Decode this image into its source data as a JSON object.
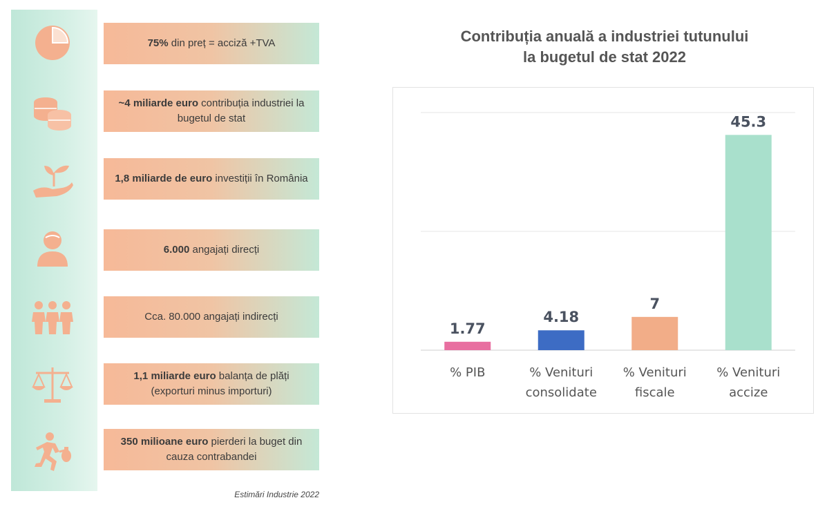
{
  "cards": [
    {
      "icon": "pie-chart-icon",
      "bold": "75%",
      "text": " din preț = acciză +TVA"
    },
    {
      "icon": "coins-icon",
      "bold": "~4 miliarde euro",
      "text": " contribuția industriei la bugetul de stat"
    },
    {
      "icon": "plant-hand-icon",
      "bold": "1,8 miliarde de euro",
      "text": " investiții în România"
    },
    {
      "icon": "employee-icon",
      "bold": "6.000",
      "text": " angajați direcți"
    },
    {
      "icon": "people-group-icon",
      "bold": "",
      "text": "Cca. 80.000 angajați indirecți"
    },
    {
      "icon": "scales-icon",
      "bold": "1,1 miliarde euro",
      "text": " balanța de plăți (exporturi minus importuri)"
    },
    {
      "icon": "running-thief-icon",
      "bold": "350 milioane euro",
      "text": " pierderi la buget din cauza contrabandei"
    }
  ],
  "source_note": "Estimări Industrie 2022",
  "chart_data": {
    "type": "bar",
    "title": "Contribuția anuală a industriei tutunului la bugetul de stat 2022",
    "title_lines": [
      "Contribuția anuală a industriei tutunului",
      "la bugetul de stat 2022"
    ],
    "categories": [
      "% PIB",
      "% Venituri consolidate",
      "%  Venituri fiscale",
      "% Venituri accize"
    ],
    "category_lines": [
      [
        "% PIB"
      ],
      [
        "% Venituri",
        "consolidate"
      ],
      [
        "%  Venituri",
        "fiscale"
      ],
      [
        "% Venituri",
        "accize"
      ]
    ],
    "values": [
      1.77,
      4.18,
      7,
      45.3
    ],
    "value_labels": [
      "1.77",
      "4.18",
      "7",
      "45.3"
    ],
    "colors": [
      "#e86fa0",
      "#3d6cc4",
      "#f2ad88",
      "#a9e0cc"
    ],
    "ylim": [
      0,
      50
    ],
    "grid": true,
    "xlabel": "",
    "ylabel": ""
  }
}
